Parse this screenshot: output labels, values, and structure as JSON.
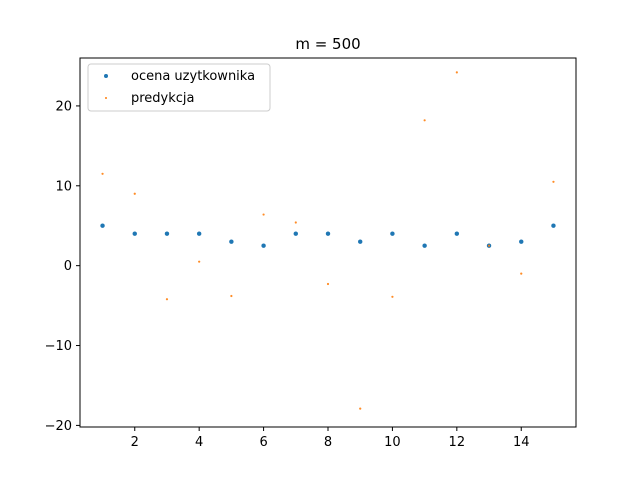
{
  "chart_data": {
    "type": "scatter",
    "title": "m = 500",
    "xlabel": "",
    "ylabel": "",
    "xlim": [
      0.3,
      15.7
    ],
    "ylim": [
      -20.2,
      26.0
    ],
    "xticks": [
      2,
      4,
      6,
      8,
      10,
      12,
      14
    ],
    "yticks": [
      -20,
      -10,
      0,
      10,
      20
    ],
    "grid": false,
    "legend_position": "top-left",
    "x": [
      1,
      2,
      3,
      4,
      5,
      6,
      7,
      8,
      9,
      10,
      11,
      12,
      13,
      14,
      15
    ],
    "series": [
      {
        "name": "ocena uzytkownika",
        "color": "#1f77b4",
        "values": [
          5,
          4,
          4,
          4,
          3,
          2.5,
          4,
          4,
          3,
          4,
          2.5,
          4,
          2.5,
          3,
          5
        ]
      },
      {
        "name": "predykcja",
        "color": "#ff7f0e",
        "values": [
          11.5,
          9.0,
          -4.2,
          0.5,
          -3.8,
          6.4,
          5.4,
          -2.3,
          -17.9,
          -3.9,
          18.2,
          24.2,
          2.5,
          -1.0,
          10.5
        ]
      }
    ]
  }
}
